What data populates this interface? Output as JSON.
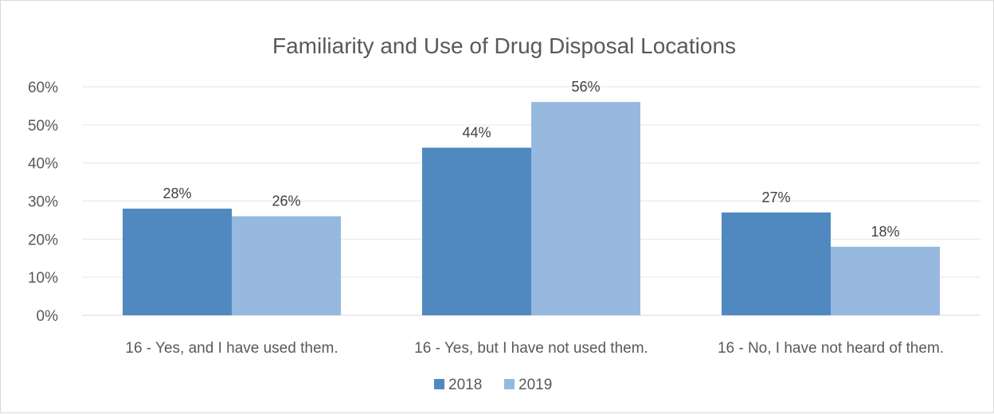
{
  "chart_data": {
    "type": "bar",
    "title": "Familiarity and Use of Drug Disposal Locations",
    "categories": [
      "16 - Yes, and I have used them.",
      "16 - Yes, but I have not used them.",
      "16 - No, I have not heard of them."
    ],
    "series": [
      {
        "name": "2018",
        "values": [
          28,
          44,
          27
        ],
        "labels": [
          "28%",
          "44%",
          "27%"
        ],
        "color": "#4f89bf"
      },
      {
        "name": "2019",
        "values": [
          26,
          56,
          18
        ],
        "labels": [
          "26%",
          "56%",
          "18%"
        ],
        "color": "#97b8df"
      }
    ],
    "ylim": [
      0,
      60
    ],
    "yticks": [
      "0%",
      "10%",
      "20%",
      "30%",
      "40%",
      "50%",
      "60%"
    ],
    "grid": true,
    "legend_position": "bottom"
  }
}
